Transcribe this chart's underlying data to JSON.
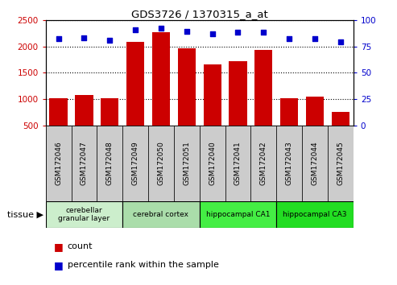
{
  "title": "GDS3726 / 1370315_a_at",
  "samples": [
    "GSM172046",
    "GSM172047",
    "GSM172048",
    "GSM172049",
    "GSM172050",
    "GSM172051",
    "GSM172040",
    "GSM172041",
    "GSM172042",
    "GSM172043",
    "GSM172044",
    "GSM172045"
  ],
  "counts": [
    1020,
    1070,
    1010,
    2090,
    2260,
    1960,
    1650,
    1720,
    1930,
    1010,
    1040,
    760
  ],
  "percentiles": [
    82,
    83,
    81,
    91,
    92,
    89,
    87,
    88,
    88,
    82,
    82,
    79
  ],
  "bar_color": "#cc0000",
  "dot_color": "#0000cc",
  "ylim_left": [
    500,
    2500
  ],
  "ylim_right": [
    0,
    100
  ],
  "yticks_left": [
    500,
    1000,
    1500,
    2000,
    2500
  ],
  "yticks_right": [
    0,
    25,
    50,
    75,
    100
  ],
  "grid_color": "black",
  "tissue_groups": [
    {
      "label": "cerebellar\ngranular layer",
      "start": 0,
      "end": 3,
      "color": "#cceecc"
    },
    {
      "label": "cerebral cortex",
      "start": 3,
      "end": 6,
      "color": "#aaddaa"
    },
    {
      "label": "hippocampal CA1",
      "start": 6,
      "end": 9,
      "color": "#44ee44"
    },
    {
      "label": "hippocampal CA3",
      "start": 9,
      "end": 12,
      "color": "#22dd22"
    }
  ],
  "legend_count_color": "#cc0000",
  "legend_dot_color": "#0000cc",
  "bg_color": "#ffffff",
  "xlabel_bg": "#cccccc",
  "tissue_label": "tissue"
}
